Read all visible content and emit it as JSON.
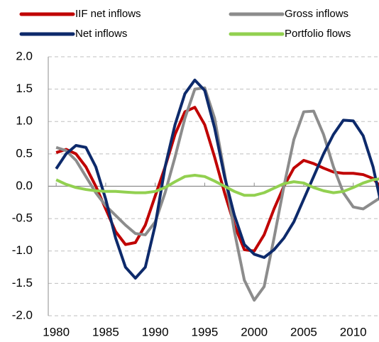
{
  "chart_data": {
    "type": "line",
    "x": [
      1980,
      1981,
      1982,
      1983,
      1984,
      1985,
      1986,
      1987,
      1988,
      1989,
      1990,
      1991,
      1992,
      1993,
      1994,
      1995,
      1996,
      1997,
      1998,
      1999,
      2000,
      2001,
      2002,
      2003,
      2004,
      2005,
      2006,
      2007,
      2008,
      2009,
      2010,
      2011,
      2012,
      2013
    ],
    "series": [
      {
        "name": "IIF net inflows",
        "color": "#c00000",
        "values": [
          0.52,
          0.57,
          0.5,
          0.3,
          0.0,
          -0.35,
          -0.7,
          -0.9,
          -0.87,
          -0.6,
          -0.15,
          0.3,
          0.8,
          1.15,
          1.22,
          0.95,
          0.45,
          -0.1,
          -0.6,
          -0.98,
          -1.0,
          -0.75,
          -0.35,
          0.0,
          0.28,
          0.4,
          0.35,
          0.28,
          0.22,
          0.2,
          0.2,
          0.18,
          0.12,
          -0.05
        ]
      },
      {
        "name": "Gross inflows",
        "color": "#8c8c8c",
        "values": [
          0.6,
          0.55,
          0.4,
          0.15,
          -0.1,
          -0.3,
          -0.45,
          -0.6,
          -0.73,
          -0.75,
          -0.55,
          -0.1,
          0.45,
          1.05,
          1.5,
          1.52,
          1.05,
          0.2,
          -0.7,
          -1.45,
          -1.76,
          -1.55,
          -0.8,
          0.0,
          0.72,
          1.15,
          1.16,
          0.8,
          0.3,
          -0.1,
          -0.32,
          -0.35,
          -0.25,
          -0.15
        ]
      },
      {
        "name": "Net inflows",
        "color": "#0d2a6b",
        "values": [
          0.27,
          0.5,
          0.63,
          0.6,
          0.3,
          -0.2,
          -0.8,
          -1.25,
          -1.42,
          -1.25,
          -0.6,
          0.3,
          0.95,
          1.43,
          1.64,
          1.48,
          0.9,
          0.15,
          -0.45,
          -0.9,
          -1.05,
          -1.1,
          -0.98,
          -0.8,
          -0.55,
          -0.2,
          0.15,
          0.5,
          0.8,
          1.02,
          1.01,
          0.78,
          0.3,
          -0.4
        ]
      },
      {
        "name": "Portfolio flows",
        "color": "#92d050",
        "values": [
          0.1,
          0.03,
          -0.02,
          -0.05,
          -0.07,
          -0.08,
          -0.08,
          -0.09,
          -0.1,
          -0.1,
          -0.08,
          -0.02,
          0.07,
          0.15,
          0.17,
          0.15,
          0.08,
          0.0,
          -0.08,
          -0.14,
          -0.14,
          -0.1,
          -0.03,
          0.04,
          0.07,
          0.05,
          -0.02,
          -0.07,
          -0.1,
          -0.08,
          -0.02,
          0.05,
          0.1,
          0.12
        ]
      }
    ],
    "xlim": [
      1979.2,
      2012.6
    ],
    "xticks": [
      1980,
      1985,
      1990,
      1995,
      2000,
      2005,
      2010
    ],
    "ylim": [
      -2,
      2
    ],
    "yticks": [
      {
        "value": 2,
        "label": "2.0"
      },
      1.5,
      {
        "value": 1,
        "label": "1.0"
      },
      0.5,
      {
        "value": 0,
        "label": "0.0"
      },
      -0.5,
      {
        "value": -1,
        "label": "-1.0"
      },
      -1.5,
      {
        "value": -2,
        "label": "-2.0"
      }
    ],
    "grid": true
  }
}
